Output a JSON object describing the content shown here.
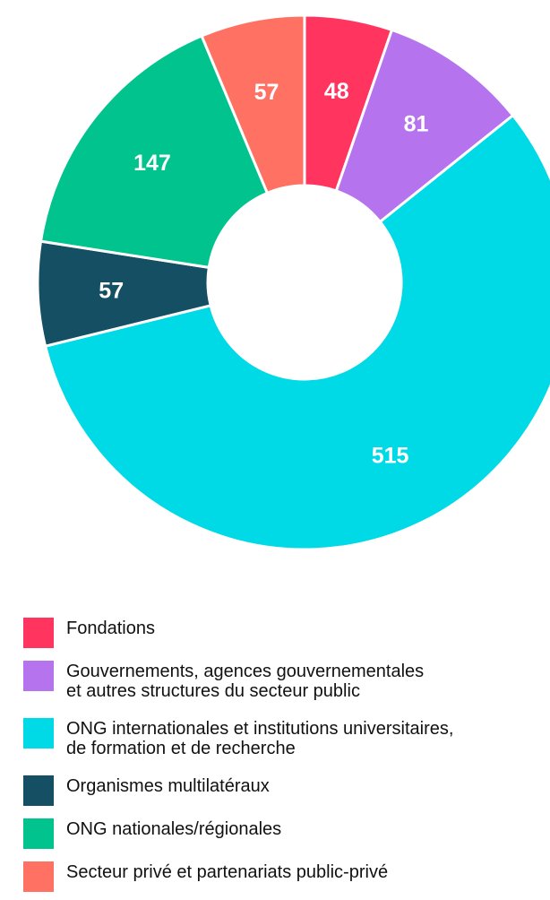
{
  "chart_data": {
    "type": "pie",
    "variant": "donut",
    "categories": [
      "Fondations",
      "Gouvernements, agences gouvernementales\net autres structures du secteur public",
      "ONG internationales et institutions universitaires,\nde formation et de recherche",
      "Organismes multilatéraux",
      "ONG nationales/régionales",
      "Secteur privé et partenariats public-privé"
    ],
    "values": [
      48,
      81,
      515,
      57,
      147,
      57
    ],
    "colors": [
      "#ff3560",
      "#b574ed",
      "#00d9e6",
      "#154f63",
      "#00c38e",
      "#ff7163"
    ],
    "title": "",
    "legend": "bottom"
  }
}
